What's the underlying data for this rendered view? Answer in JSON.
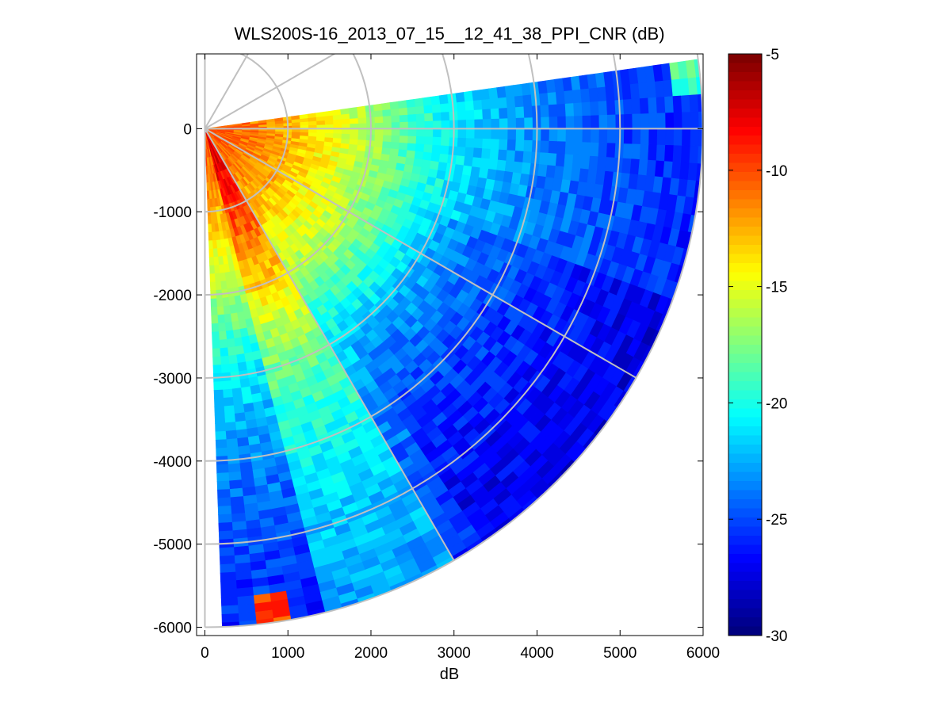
{
  "chart_data": {
    "type": "heatmap",
    "subtype": "polar-ppi-sector",
    "title": "WLS200S-16_2013_07_15__12_41_38_PPI_CNR (dB)",
    "xlabel": "dB",
    "ylabel": "",
    "xlim": [
      -100,
      6000
    ],
    "ylim": [
      -6100,
      900
    ],
    "x_ticks": [
      0,
      1000,
      2000,
      3000,
      4000,
      5000,
      6000
    ],
    "x_tick_labels": [
      "0",
      "1000",
      "2000",
      "3000",
      "4000",
      "5000",
      "6000"
    ],
    "y_ticks": [
      0,
      -1000,
      -2000,
      -3000,
      -4000,
      -5000,
      -6000
    ],
    "y_tick_labels": [
      "0",
      "-1000",
      "-2000",
      "-3000",
      "-4000",
      "-5000",
      "-6000"
    ],
    "grid_rings_m": [
      1000,
      2000,
      3000,
      4000,
      5000,
      6000
    ],
    "grid_spokes_deg": [
      90,
      60,
      30,
      0,
      -30,
      -60,
      -90
    ],
    "sector": {
      "azimuth_start_deg": -88,
      "azimuth_end_deg": 8,
      "range_min_m": 50,
      "range_max_m": 6000,
      "range_gate_m": 100,
      "azimuth_step_deg": 2
    },
    "colorbar": {
      "colormap": "jet",
      "clim": [
        -30,
        -5
      ],
      "ticks": [
        -5,
        -10,
        -15,
        -20,
        -25,
        -30
      ],
      "tick_labels": [
        "-5",
        "-10",
        "-15",
        "-20",
        "-25",
        "-30"
      ]
    },
    "cnr_profile": {
      "range_m": [
        0,
        500,
        1000,
        1500,
        2000,
        2500,
        3000,
        4000,
        5000,
        6000
      ],
      "cnr_db": [
        -10,
        -11,
        -12.5,
        -14.5,
        -16.5,
        -19,
        -21,
        -23.5,
        -25,
        -26
      ]
    },
    "features": [
      {
        "name": "bright-beam",
        "azimuth_range_deg": [
          -75,
          -60
        ],
        "cnr_offset_db": 3
      },
      {
        "name": "dark-region",
        "azimuth_range_deg": [
          -55,
          -20
        ],
        "range_min_m": 2500,
        "cnr_offset_db": -1.5
      },
      {
        "name": "hot-spot-far-bottom",
        "azimuth_deg": -82,
        "range_m": 5900,
        "cnr_db": -10
      },
      {
        "name": "hot-spot-far-top",
        "azimuth_deg": 6,
        "range_m": 5900,
        "cnr_db": -19
      }
    ]
  }
}
